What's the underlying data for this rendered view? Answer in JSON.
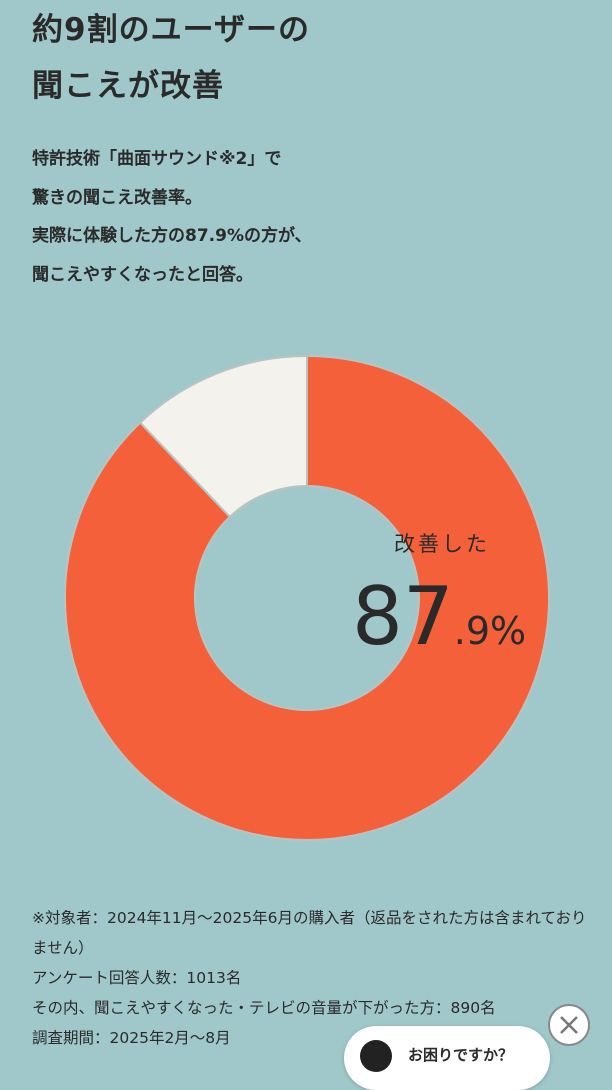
{
  "header": {
    "title": [
      "約9割のユーザーの",
      "聞こえが改善"
    ]
  },
  "lead": [
    "特許技術「曲面サウンド※2」で",
    "驚きの聞こえ改善率。",
    "実際に体験した方の87.9%の方が、",
    "聞こえやすくなったと回答。"
  ],
  "chart_data": {
    "type": "donut",
    "values": [
      87.9,
      12.1
    ],
    "value_labels": [
      "87.9%",
      null
    ],
    "center_caption": "改善した",
    "colors": [
      "#f4603a",
      "#f4f2ec"
    ]
  },
  "notes": [
    "※対象者：2024年11月～2025年6月の購入者（返品をされた方は含まれておりません）",
    "アンケート回答人数：1013名",
    "その内、聞こえやすくなった・テレビの音量が下がった方：890名",
    "調査期間：2025年2月～8月"
  ],
  "chat": {
    "label": "お困りですか？"
  }
}
